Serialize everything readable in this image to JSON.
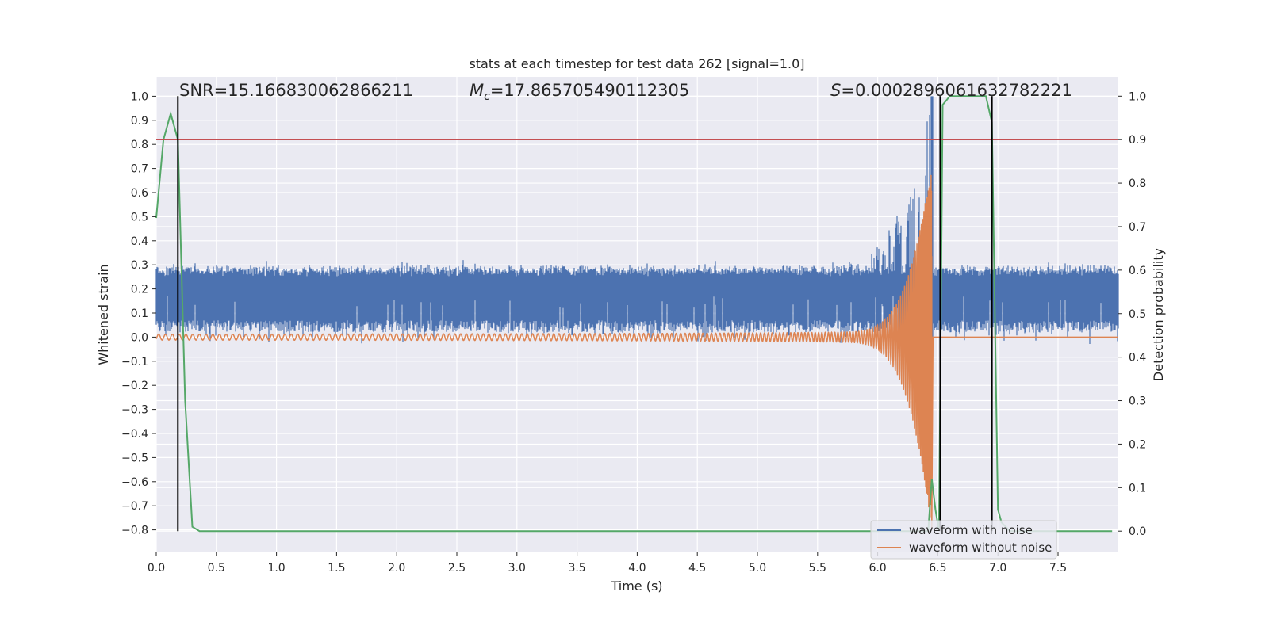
{
  "chart_data": {
    "type": "line",
    "title": "stats at each timestep for test data 262 [signal=1.0]",
    "xlabel": "Time (s)",
    "ylabel_left": "Whitened strain",
    "ylabel_right": "Detection probability",
    "xlim": [
      0.0,
      8.0
    ],
    "ylim_left": [
      -0.89,
      1.09
    ],
    "ylim_right": [
      -0.05,
      1.05
    ],
    "x_ticks": [
      "0.0",
      "0.5",
      "1.0",
      "1.5",
      "2.0",
      "2.5",
      "3.0",
      "3.5",
      "4.0",
      "4.5",
      "5.0",
      "5.5",
      "6.0",
      "6.5",
      "7.0",
      "7.5"
    ],
    "x_tick_values": [
      0.0,
      0.5,
      1.0,
      1.5,
      2.0,
      2.5,
      3.0,
      3.5,
      4.0,
      4.5,
      5.0,
      5.5,
      6.0,
      6.5,
      7.0,
      7.5
    ],
    "y_left_ticks": [
      "1.0",
      "0.9",
      "0.8",
      "0.7",
      "0.6",
      "0.5",
      "0.4",
      "0.3",
      "0.2",
      "0.1",
      "0.0",
      "−0.1",
      "−0.2",
      "−0.3",
      "−0.4",
      "−0.5",
      "−0.6",
      "−0.7",
      "−0.8"
    ],
    "y_left_tick_values": [
      1.0,
      0.9,
      0.8,
      0.7,
      0.6,
      0.5,
      0.4,
      0.3,
      0.2,
      0.1,
      0.0,
      -0.1,
      -0.2,
      -0.3,
      -0.4,
      -0.5,
      -0.6,
      -0.7,
      -0.8
    ],
    "y_right_ticks": [
      "1.0",
      "0.9",
      "0.8",
      "0.7",
      "0.6",
      "0.5",
      "0.4",
      "0.3",
      "0.2",
      "0.1",
      "0.0"
    ],
    "y_right_tick_values": [
      1.0,
      0.9,
      0.8,
      0.7,
      0.6,
      0.5,
      0.4,
      0.3,
      0.2,
      0.1,
      0.0
    ],
    "annotations": {
      "snr": "SNR=15.166830062866211",
      "mc_symbol": "M",
      "mc_sub": "c",
      "mc_value": "=17.865705490112305",
      "s_symbol": "S",
      "s_value": "=0.0002896061632782221"
    },
    "legend": {
      "placement": "lower-right",
      "entries": [
        "waveform with noise",
        "waveform without noise"
      ]
    },
    "series": [
      {
        "name": "waveform with noise",
        "color": "#4c72b0",
        "description_band": {
          "base_low": 0.02,
          "base_high": 0.27,
          "merger_time": 6.45,
          "merger_peak_high": 1.0,
          "merger_peak_low": -0.08
        }
      },
      {
        "name": "waveform without noise",
        "color": "#dd8452",
        "chirp": {
          "start_time": 0.0,
          "merger_time": 6.45,
          "start_amplitude": 0.012,
          "peak_high": 0.73,
          "peak_low": -0.8,
          "end_value": 0.0
        }
      },
      {
        "name": "",
        "color": "#55a868",
        "axis": "right",
        "x": [
          0.0,
          0.06,
          0.12,
          0.18,
          0.24,
          0.3,
          0.36,
          0.42,
          6.42,
          6.45,
          6.48,
          6.51,
          6.54,
          6.6,
          6.7,
          6.8,
          6.9,
          6.95,
          7.0,
          7.03,
          7.1,
          7.5,
          7.95
        ],
        "y": [
          0.72,
          0.9,
          0.96,
          0.9,
          0.3,
          0.01,
          0.0,
          0.0,
          0.0,
          0.12,
          0.05,
          0.0,
          0.98,
          1.0,
          1.0,
          1.0,
          1.0,
          0.94,
          0.05,
          0.02,
          0.0,
          0.0,
          0.0
        ]
      }
    ],
    "threshold_line": {
      "axis": "right",
      "value": 0.9,
      "color": "#c44e52"
    },
    "vertical_markers": {
      "x": [
        0.18,
        6.52,
        6.95
      ],
      "color": "#000000"
    }
  }
}
